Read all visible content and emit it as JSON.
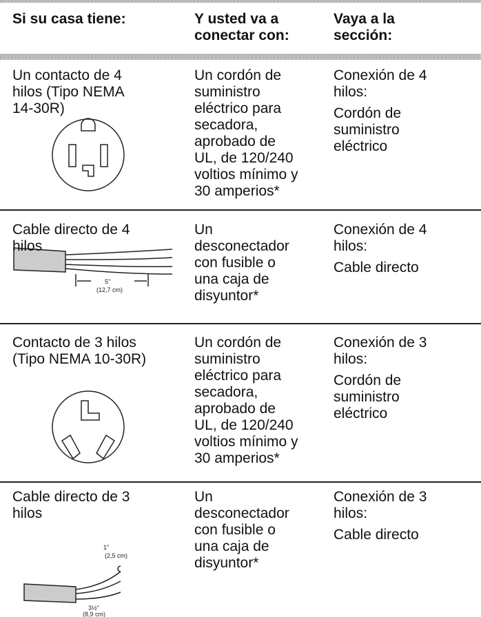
{
  "header": {
    "cells": [
      [
        "Si su casa tiene:"
      ],
      [
        "Y usted va a",
        "conectar con:"
      ],
      [
        "Vaya a la",
        "sección:"
      ]
    ]
  },
  "rows": [
    {
      "have": [
        "Un contacto de 4",
        "hilos (Tipo NEMA",
        "14-30R)"
      ],
      "connect": [
        "Un cordón de",
        "suministro",
        "eléctrico para",
        "secadora,",
        "aprobado de",
        "UL, de 120/240",
        "voltios mínimo y",
        "30 amperios*"
      ],
      "section": {
        "connection": [
          "Conexión de 4",
          "hilos:"
        ],
        "target": [
          "Cordón de",
          "suministro",
          "eléctrico"
        ]
      }
    },
    {
      "have": [
        "Cable directo de 4",
        "hilos"
      ],
      "connect": [
        "Un",
        "desconectador",
        "con fusible o",
        "una caja de",
        "disyuntor*"
      ],
      "section": {
        "connection": [
          "Conexión de 4",
          "hilos:"
        ],
        "target": [
          "Cable directo"
        ]
      },
      "figure": {
        "length": "5\"",
        "length_metric": "(12,7 cm)"
      }
    },
    {
      "have": [
        "Contacto de 3 hilos",
        "(Tipo NEMA 10-30R)"
      ],
      "connect": [
        "Un cordón de",
        "suministro",
        "eléctrico para",
        "secadora,",
        "aprobado de",
        "UL, de 120/240",
        "voltios mínimo y",
        "30 amperios*"
      ],
      "section": {
        "connection": [
          "Conexión de 3",
          "hilos:"
        ],
        "target": [
          "Cordón de",
          "suministro",
          "eléctrico"
        ]
      }
    },
    {
      "have": [
        "Cable directo de 3",
        "hilos"
      ],
      "connect": [
        "Un",
        "desconectador",
        "con fusible o",
        "una caja de",
        "disyuntor*"
      ],
      "section": {
        "connection": [
          "Conexión de 3",
          "hilos:"
        ],
        "target": [
          "Cable directo"
        ]
      },
      "figure": {
        "end": "1\"",
        "end_metric": "(2,5 cm)",
        "length": "3½\"",
        "length_metric": "(8,9 cm)"
      }
    }
  ]
}
